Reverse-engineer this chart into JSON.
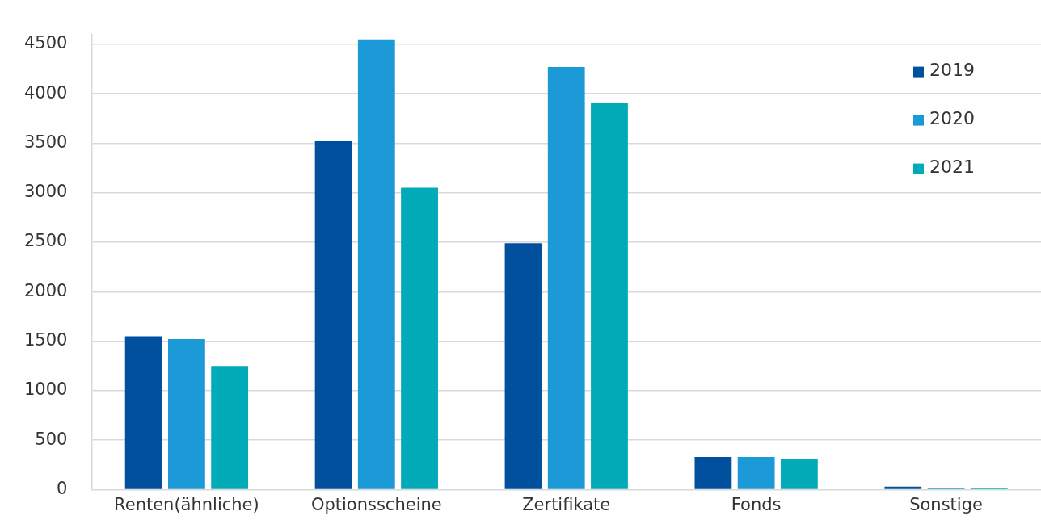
{
  "chart_data": {
    "type": "bar",
    "categories": [
      "Renten(ähnliche)",
      "Optionsscheine",
      "Zertifikate",
      "Fonds",
      "Sonstige"
    ],
    "series": [
      {
        "name": "2019",
        "color": "#00509e",
        "values": [
          1550,
          3520,
          2490,
          330,
          30
        ]
      },
      {
        "name": "2020",
        "color": "#1b9ad7",
        "values": [
          1520,
          4550,
          4270,
          330,
          20
        ]
      },
      {
        "name": "2021",
        "color": "#00abb8",
        "values": [
          1250,
          3050,
          3910,
          310,
          20
        ]
      }
    ],
    "ylim": [
      0,
      4600
    ],
    "yticks": [
      0,
      500,
      1000,
      1500,
      2000,
      2500,
      3000,
      3500,
      4000,
      4500
    ],
    "grid": "y",
    "legend": "top right"
  }
}
